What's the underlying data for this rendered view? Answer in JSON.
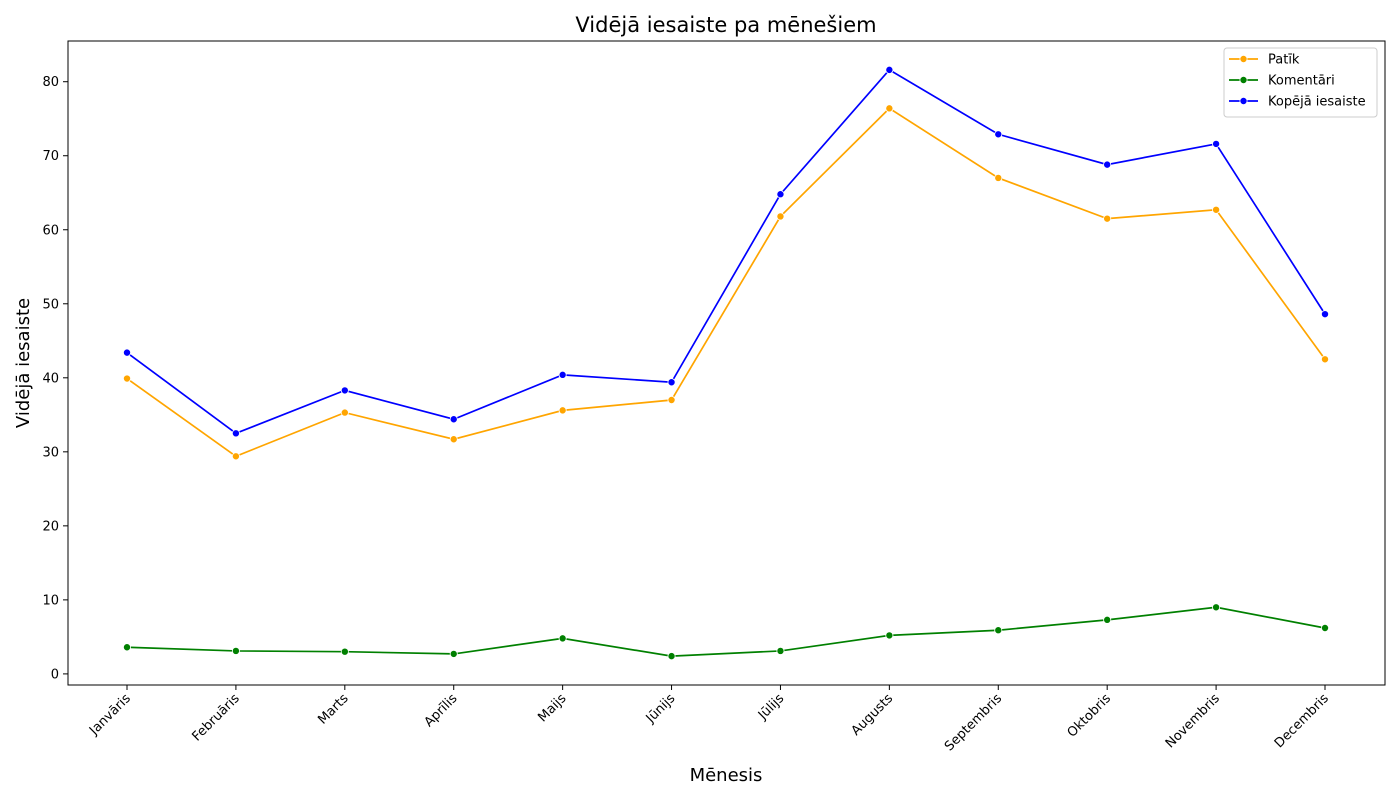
{
  "chart_data": {
    "type": "line",
    "title": "Vidējā iesaiste pa mēnešiem",
    "xlabel": "Mēnesis",
    "ylabel": "Vidējā iesaiste",
    "categories": [
      "Janvāris",
      "Februāris",
      "Marts",
      "Aprīlis",
      "Maijs",
      "Jūnijs",
      "Jūlijs",
      "Augusts",
      "Septembris",
      "Oktobris",
      "Novembris",
      "Decembris"
    ],
    "ylim": [
      -1.5,
      85.5
    ],
    "yticks": [
      0,
      10,
      20,
      30,
      40,
      50,
      60,
      70,
      80
    ],
    "grid": false,
    "legend_position": "top-right",
    "series": [
      {
        "name": "Patīk",
        "color": "#ffa500",
        "values": [
          39.9,
          29.4,
          35.3,
          31.7,
          35.6,
          37.0,
          61.8,
          76.4,
          67.0,
          61.5,
          62.7,
          42.5
        ]
      },
      {
        "name": "Komentāri",
        "color": "#008000",
        "values": [
          3.6,
          3.1,
          3.0,
          2.7,
          4.8,
          2.4,
          3.1,
          5.2,
          5.9,
          7.3,
          9.0,
          6.2
        ]
      },
      {
        "name": "Kopējā iesaiste",
        "color": "#0000ff",
        "values": [
          43.4,
          32.5,
          38.3,
          34.4,
          40.4,
          39.4,
          64.8,
          81.6,
          72.9,
          68.8,
          71.6,
          48.6
        ]
      }
    ]
  }
}
